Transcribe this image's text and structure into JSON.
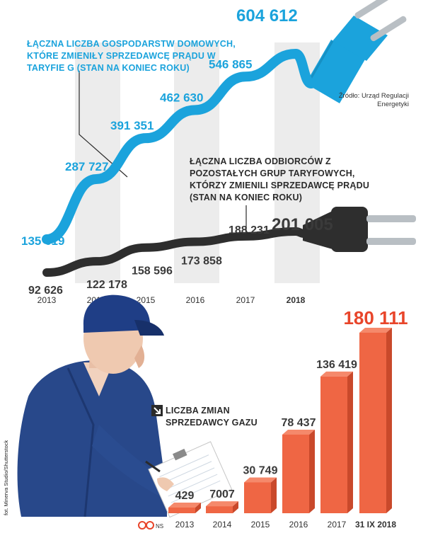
{
  "upper_chart": {
    "series_a_label": "Łączna liczba gospodarstw domowych, które zmieniły sprzedawcę prądu w taryfie G (stan na koniec roku)",
    "series_b_label": "Łączna liczba odbiorców z pozostałych grup taryfowych, którzy zmienili sprzedawcę prądu (stan na koniec roku)",
    "source": "Źródło: Urząd Regulacji Energetyki",
    "highlight_year": "2018"
  },
  "lower_chart": {
    "label": "Liczba zmian sprzedawcy gazu",
    "highlight_label": "180 111",
    "logo_text": "NS",
    "photo_credit": "fot. Minerva Studio/Shutterstock"
  },
  "colors": {
    "blue": "#1ba3dc",
    "dark": "#2e2e2e",
    "red": "#e8452a",
    "bar": "#ef6644",
    "band": "#ececec"
  },
  "chart_data": [
    {
      "type": "line",
      "categories": [
        "2013",
        "2014",
        "2015",
        "2016",
        "2017",
        "2018"
      ],
      "series": [
        {
          "name": "Łączna liczba gospodarstw domowych, które zmieniły sprzedawcę prądu w taryfie G (stan na koniec roku)",
          "values": [
            135619,
            287727,
            391351,
            462630,
            546865,
            604612
          ],
          "value_labels": [
            "135 619",
            "287 727",
            "391 351",
            "462 630",
            "546 865",
            "604 612"
          ]
        },
        {
          "name": "Łączna liczba odbiorców z pozostałych grup taryfowych, którzy zmienili sprzedawcę prądu (stan na koniec roku)",
          "values": [
            92626,
            122178,
            158596,
            173858,
            188231,
            201005
          ],
          "value_labels": [
            "92 626",
            "122 178",
            "158 596",
            "173 858",
            "188 231",
            "201 005"
          ]
        }
      ]
    },
    {
      "type": "bar",
      "title": "Liczba zmian sprzedawcy gazu",
      "categories": [
        "2013",
        "2014",
        "2015",
        "2016",
        "2017",
        "31 IX 2018"
      ],
      "values": [
        429,
        7007,
        30749,
        78437,
        136419,
        180111
      ],
      "value_labels": [
        "429",
        "7007",
        "30 749",
        "78 437",
        "136 419",
        "180 111"
      ]
    }
  ]
}
